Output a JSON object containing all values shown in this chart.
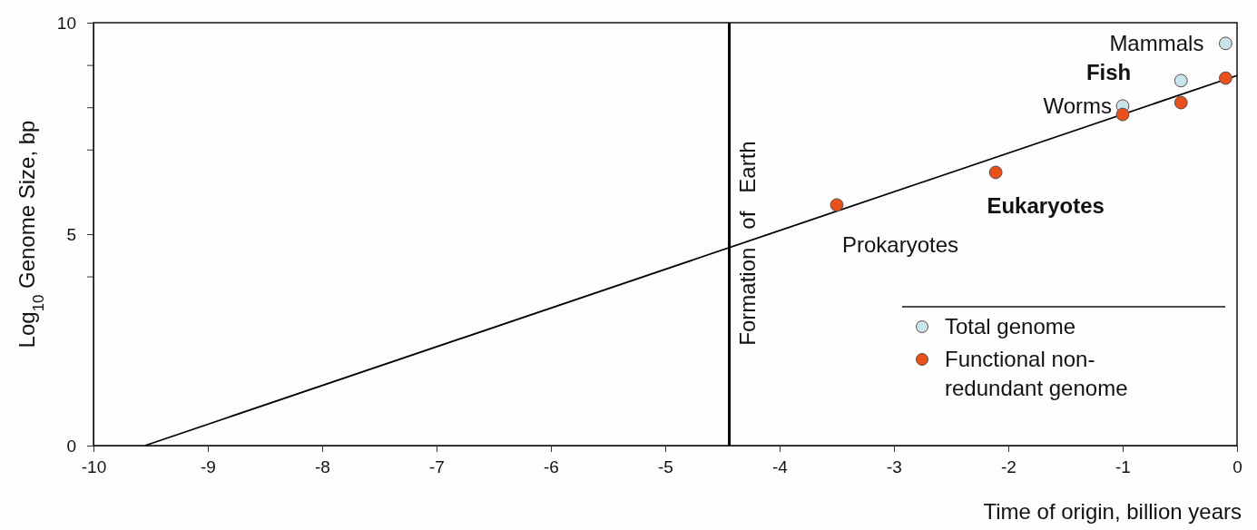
{
  "chart_data": {
    "type": "scatter",
    "xlabel": "Time of origin, billion years",
    "ylabel": "Log$_{10}$ Genome Size, bp",
    "xlim": [
      -10,
      0
    ],
    "xticks": [
      -10,
      -9,
      -8,
      -7,
      -6,
      -5,
      -4,
      -3,
      -2,
      -1,
      0
    ],
    "ylim": [
      0,
      10
    ],
    "yticks": [
      0,
      {
        "value": 4,
        "label": null
      },
      5,
      {
        "value": 7,
        "label": null
      },
      {
        "value": 8,
        "label": null
      },
      {
        "value": 9,
        "label": null
      },
      10
    ],
    "grid": false,
    "legend": "bottom right",
    "marker": "circle",
    "series": [
      {
        "type": "line",
        "color": "#000000",
        "x": [
          -9.55,
          0
        ],
        "values": [
          0,
          8.75
        ],
        "marker": "none"
      },
      {
        "name": "Total genome",
        "color": "#c8e4ec",
        "x": [
          -1.0,
          -0.49,
          -0.1
        ],
        "values": [
          8.03,
          8.63,
          9.51
        ]
      },
      {
        "name": "Functional non-redundant genome",
        "color": "#e8501c",
        "x": [
          -3.5,
          -2.11,
          -1.0,
          -0.49,
          -0.1
        ],
        "values": [
          5.69,
          6.46,
          7.83,
          8.11,
          8.69
        ]
      }
    ],
    "ref_lines": [
      {
        "axis": "x",
        "value": -4.44,
        "label": "Formation   of   Earth",
        "color": "#000000"
      }
    ],
    "annotations": [
      {
        "text": "Mammals",
        "x": -0.1,
        "y": 9.51
      },
      {
        "text": "Fish",
        "x": -0.49,
        "y": 8.63
      },
      {
        "text": "Worms",
        "x": -1.0,
        "y": 8.03
      },
      {
        "text": "Eukaryotes",
        "x": -2.11,
        "y": 6.46
      },
      {
        "text": "Prokaryotes",
        "x": -3.5,
        "y": 5.69
      }
    ]
  }
}
